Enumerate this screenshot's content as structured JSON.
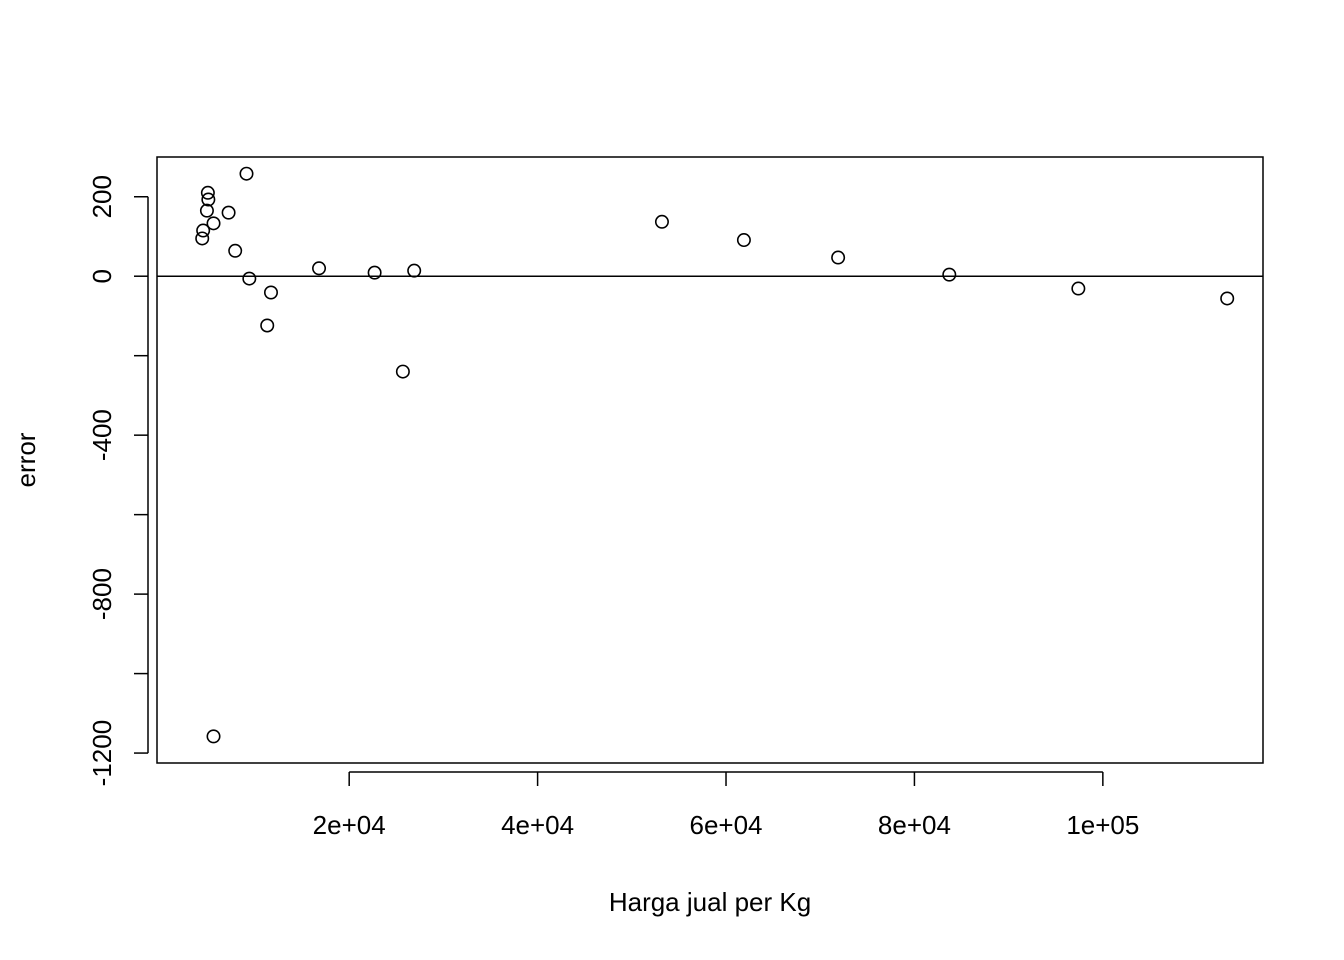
{
  "chart_data": {
    "type": "scatter",
    "title": "",
    "xlabel": "Harga jual per Kg",
    "ylabel": "error",
    "xlim": [
      -400,
      117000
    ],
    "ylim": [
      -1225,
      300
    ],
    "x_ticks": [
      20000,
      40000,
      60000,
      80000,
      100000
    ],
    "x_tick_labels": [
      "2e+04",
      "4e+04",
      "6e+04",
      "8e+04",
      "1e+05"
    ],
    "y_ticks": [
      -1200,
      -800,
      -400,
      0,
      200
    ],
    "y_tick_labels": [
      "-1200",
      "-800",
      "-400",
      "0",
      "200"
    ],
    "y_minor_ticks": [
      -1000,
      -600,
      -200
    ],
    "reference_line": {
      "y": 0
    },
    "grid": false,
    "points": [
      {
        "x": 4400,
        "y": 95
      },
      {
        "x": 4500,
        "y": 115
      },
      {
        "x": 4900,
        "y": 165
      },
      {
        "x": 5000,
        "y": 210
      },
      {
        "x": 5050,
        "y": 193
      },
      {
        "x": 5600,
        "y": 133
      },
      {
        "x": 5600,
        "y": -1158
      },
      {
        "x": 7200,
        "y": 160
      },
      {
        "x": 7900,
        "y": 64
      },
      {
        "x": 9100,
        "y": 258
      },
      {
        "x": 9400,
        "y": -6
      },
      {
        "x": 11300,
        "y": -124
      },
      {
        "x": 11700,
        "y": -41
      },
      {
        "x": 16800,
        "y": 20
      },
      {
        "x": 22700,
        "y": 9
      },
      {
        "x": 25700,
        "y": -240
      },
      {
        "x": 26900,
        "y": 14
      },
      {
        "x": 53200,
        "y": 137
      },
      {
        "x": 61900,
        "y": 91
      },
      {
        "x": 71900,
        "y": 47
      },
      {
        "x": 83700,
        "y": 4
      },
      {
        "x": 97400,
        "y": -31
      },
      {
        "x": 113200,
        "y": -56
      }
    ]
  }
}
